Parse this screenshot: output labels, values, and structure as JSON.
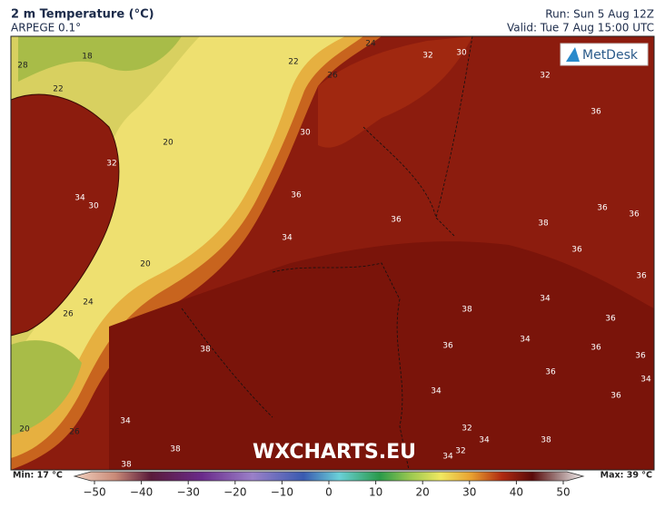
{
  "header": {
    "title": "2 m Temperature (°C)",
    "model": "ARPEGE 0.1°",
    "run": "Run: Sun 5 Aug 12Z",
    "valid": "Valid: Tue 7 Aug 15:00 UTC"
  },
  "logo": "MetDesk",
  "watermark": "WXCHARTS.EU",
  "map": {
    "contour_labels": [
      18,
      22,
      24,
      32,
      30,
      32,
      28,
      22,
      26,
      36,
      20,
      30,
      32,
      34,
      30,
      36,
      36,
      36,
      36,
      38,
      34,
      36,
      20,
      36,
      34,
      24,
      26,
      38,
      36,
      34,
      36,
      38,
      36,
      36,
      36,
      34,
      34,
      36,
      32,
      34,
      38,
      20,
      26,
      34,
      38,
      32,
      34,
      38
    ]
  },
  "colorbar": {
    "min_label": "Min: 17 °C",
    "max_label": "Max: 39 °C",
    "ticks": [
      {
        "value": -50,
        "label": "−50"
      },
      {
        "value": -40,
        "label": "−40"
      },
      {
        "value": -30,
        "label": "−30"
      },
      {
        "value": -20,
        "label": "−20"
      },
      {
        "value": -10,
        "label": "−10"
      },
      0,
      10,
      20,
      30,
      40,
      50
    ]
  }
}
